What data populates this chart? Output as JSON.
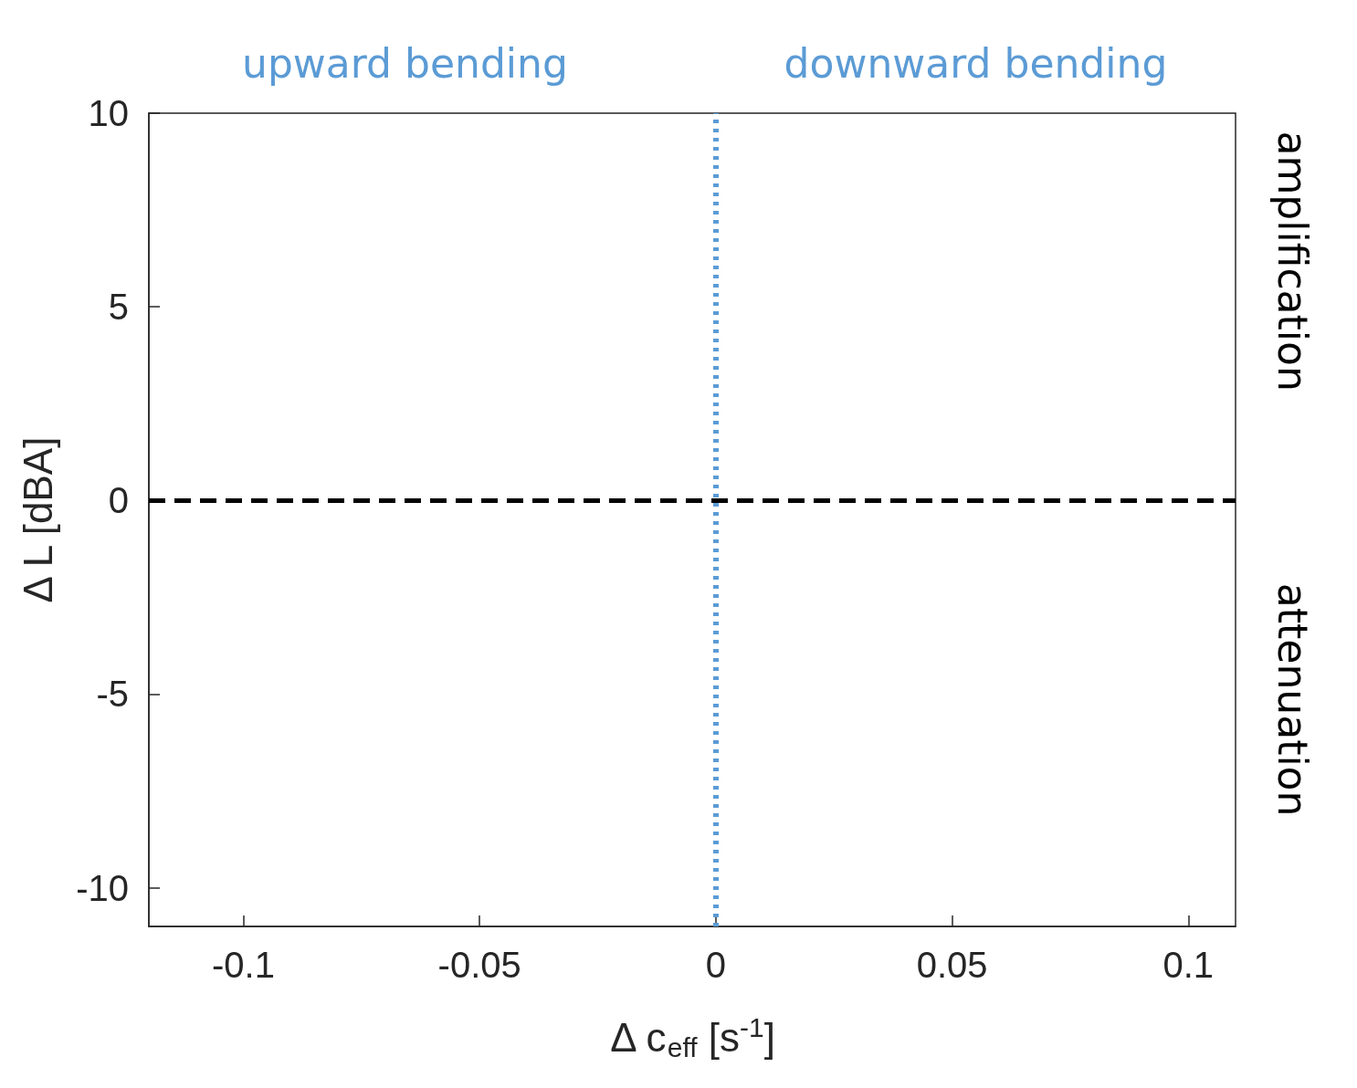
{
  "chart_data": {
    "type": "scatter",
    "xlabel": "Δ c$_{eff}$ [s$^{-1}$]",
    "ylabel": "Δ L [dBA]",
    "xlim": [
      -0.12,
      0.11
    ],
    "xticks": [
      -0.1,
      -0.05,
      0,
      0.05,
      0.1
    ],
    "ylim": [
      -11,
      10
    ],
    "yticks": [
      -10,
      -5,
      0,
      5,
      10
    ],
    "ref_lines": [
      {
        "axis": "x",
        "value": 0,
        "color": "#5b9bd5",
        "line_style": "dotted"
      },
      {
        "axis": "y",
        "value": 0,
        "color": "#000000",
        "line_style": "dashed"
      }
    ],
    "annotations": [
      "upward bending",
      "downward bending",
      "amplification",
      "attenuation"
    ],
    "grid": false
  }
}
